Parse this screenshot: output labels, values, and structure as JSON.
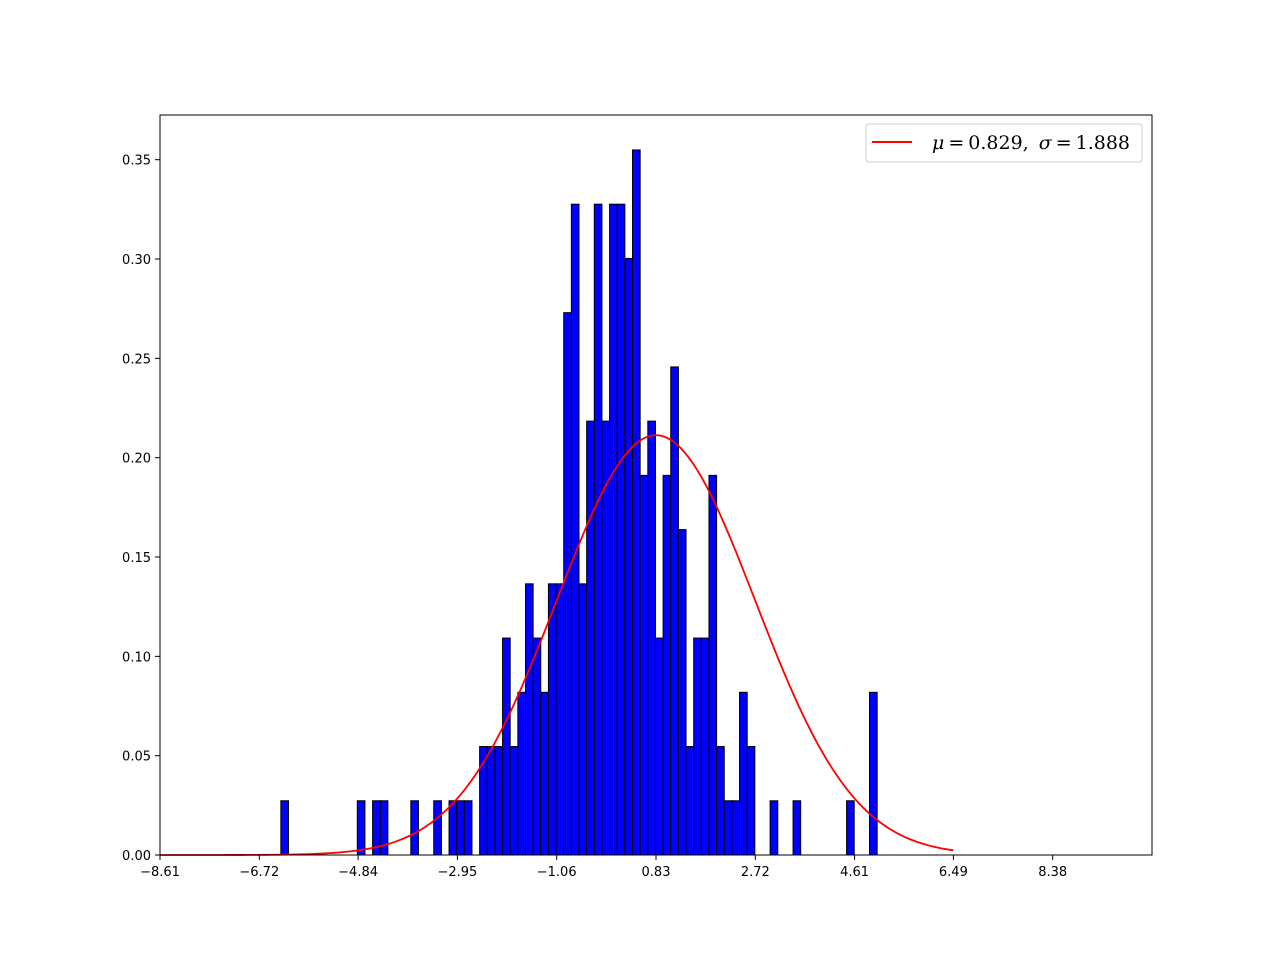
{
  "chart_data": {
    "type": "bar",
    "title": "",
    "xlabel": "",
    "ylabel": "",
    "xlim": [
      -8.61,
      10.27
    ],
    "ylim": [
      0,
      0.3725
    ],
    "grid": false,
    "legend_placement": "top-right",
    "x_ticks": [
      -8.61,
      -6.72,
      -4.84,
      -2.95,
      -1.06,
      0.83,
      2.72,
      4.61,
      6.49,
      8.38
    ],
    "x_tick_labels": [
      "−8.61",
      "−6.72",
      "−4.84",
      "−2.95",
      "−1.06",
      "0.83",
      "2.72",
      "4.61",
      "6.49",
      "8.38"
    ],
    "y_ticks": [
      0,
      0.05,
      0.1,
      0.15,
      0.2,
      0.25,
      0.3,
      0.35
    ],
    "y_tick_labels": [
      "0.00",
      "0.05",
      "0.10",
      "0.15",
      "0.20",
      "0.25",
      "0.30",
      "0.35"
    ],
    "histogram": {
      "color": "#0000ff",
      "edge_color": "#000000",
      "bin_start": -6.31,
      "bin_width": 0.1455,
      "heights": [
        0.0273,
        0,
        0,
        0,
        0,
        0,
        0,
        0,
        0,
        0,
        0.0273,
        0,
        0.0273,
        0.0273,
        0,
        0,
        0,
        0.0273,
        0,
        0,
        0.0273,
        0,
        0.0273,
        0.0273,
        0.0273,
        0,
        0.0546,
        0.0546,
        0.0546,
        0.1092,
        0.0546,
        0.0819,
        0.1365,
        0.1092,
        0.0819,
        0.1365,
        0.1365,
        0.273,
        0.3276,
        0.1365,
        0.2184,
        0.3276,
        0.2184,
        0.3276,
        0.3276,
        0.3003,
        0.3549,
        0.1911,
        0.2184,
        0.1092,
        0.1911,
        0.2457,
        0.1638,
        0.0546,
        0.1092,
        0.1092,
        0.1911,
        0.0546,
        0.0273,
        0.0273,
        0.0819,
        0.0546,
        0,
        0,
        0.0273,
        0,
        0,
        0.0273,
        0,
        0,
        0,
        0,
        0,
        0,
        0.0273,
        0,
        0,
        0.0819
      ]
    },
    "series": [
      {
        "name": "μ = 0.829,  σ = 1.888",
        "type": "line",
        "color": "#ff0000",
        "mu": 0.829,
        "sigma": 1.888,
        "x_range": [
          -8.61,
          6.49
        ]
      }
    ],
    "legend": {
      "mu_symbol": "μ",
      "mu_value": "0.829,",
      "sigma_symbol": "σ",
      "sigma_value": "1.888",
      "equals": "="
    }
  }
}
